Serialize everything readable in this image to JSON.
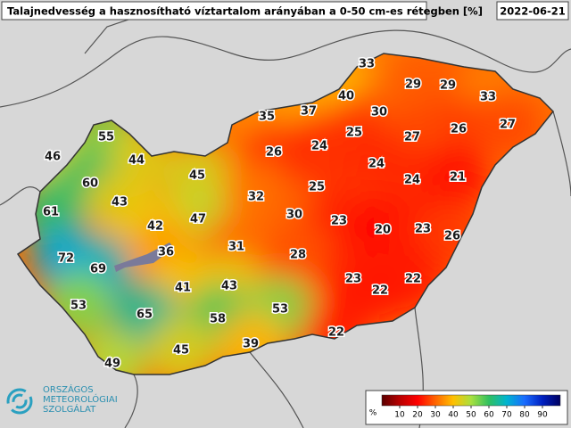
{
  "header": {
    "title": "Talajnedvesség a hasznosítható víztartalom arányában a 0-50 cm-es rétegben [%]",
    "date": "2022-06-21"
  },
  "stations": [
    33,
    29,
    29,
    33,
    40,
    30,
    35,
    37,
    26,
    27,
    55,
    26,
    24,
    25,
    27,
    46,
    44,
    45,
    24,
    24,
    21,
    60,
    25,
    32,
    43,
    61,
    30,
    47,
    42,
    23,
    20,
    23,
    26,
    31,
    36,
    72,
    28,
    69,
    41,
    43,
    23,
    22,
    22,
    53,
    65,
    58,
    53,
    22,
    39,
    45,
    49
  ],
  "legend": {
    "unit": "%",
    "range": [
      0,
      100
    ],
    "ticks": [
      10,
      20,
      30,
      40,
      50,
      60,
      70,
      80,
      90
    ],
    "colors": [
      "#5a0000",
      "#b80000",
      "#ff0000",
      "#ff6400",
      "#ffc000",
      "#a8e040",
      "#30c060",
      "#00b4d0",
      "#1a6cff",
      "#0020c0",
      "#000060"
    ]
  },
  "logo": {
    "lines": [
      "ORSZÁGOS",
      "METEOROLÓGIAI",
      "SZOLGÁLAT"
    ]
  }
}
